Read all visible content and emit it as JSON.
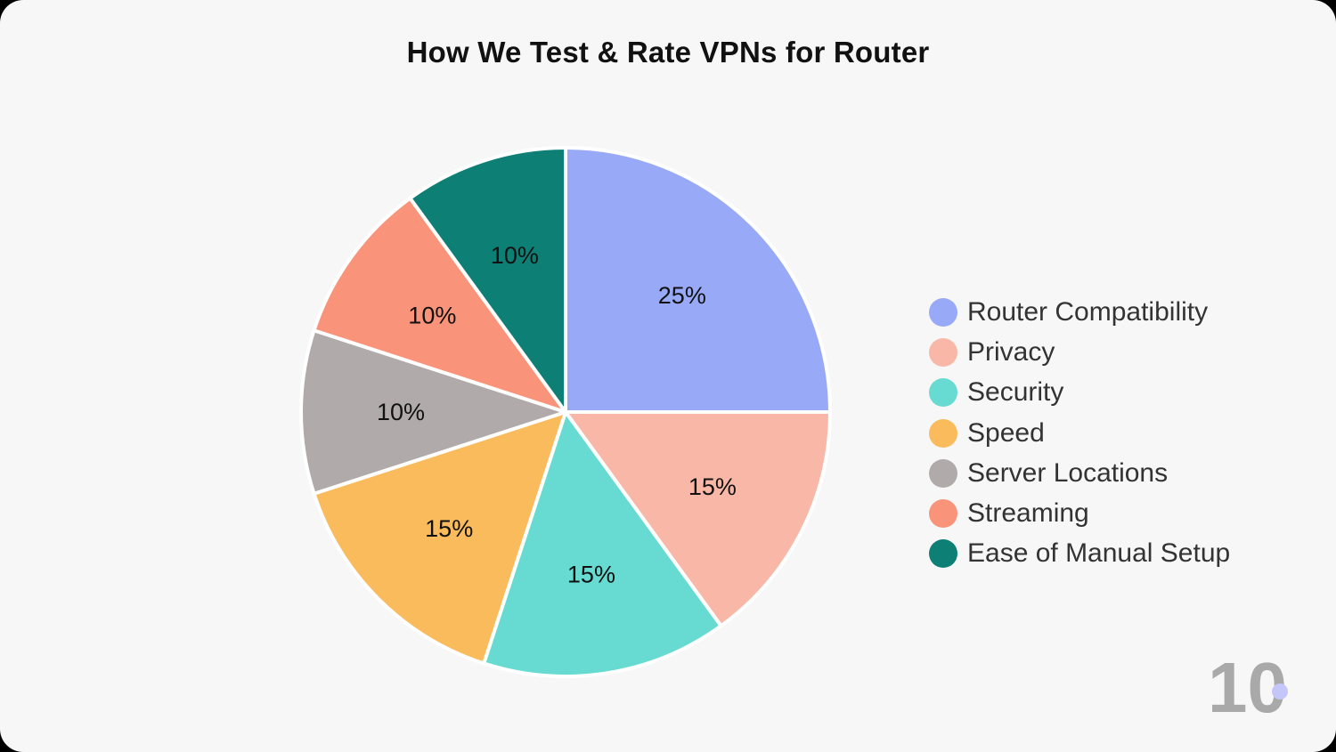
{
  "chart_data": {
    "type": "pie",
    "title": "How We Test & Rate VPNs for Router",
    "legend_position": "right",
    "slices": [
      {
        "label": "Router Compatibility",
        "value": 25,
        "value_label": "25%",
        "color": "#98aaf7"
      },
      {
        "label": "Privacy",
        "value": 15,
        "value_label": "15%",
        "color": "#f9b8a7"
      },
      {
        "label": "Security",
        "value": 15,
        "value_label": "15%",
        "color": "#67dbd1"
      },
      {
        "label": "Speed",
        "value": 15,
        "value_label": "15%",
        "color": "#f9bb5c"
      },
      {
        "label": "Server Locations",
        "value": 10,
        "value_label": "10%",
        "color": "#b0abaa"
      },
      {
        "label": "Streaming",
        "value": 10,
        "value_label": "10%",
        "color": "#f99379"
      },
      {
        "label": "Ease of Manual Setup",
        "value": 10,
        "value_label": "10%",
        "color": "#0e7f74"
      }
    ]
  },
  "logo": {
    "text": "10",
    "icon": "brand-logo-10",
    "text_color": "#a9a9a9",
    "dot_color": "#c4c6f9"
  }
}
